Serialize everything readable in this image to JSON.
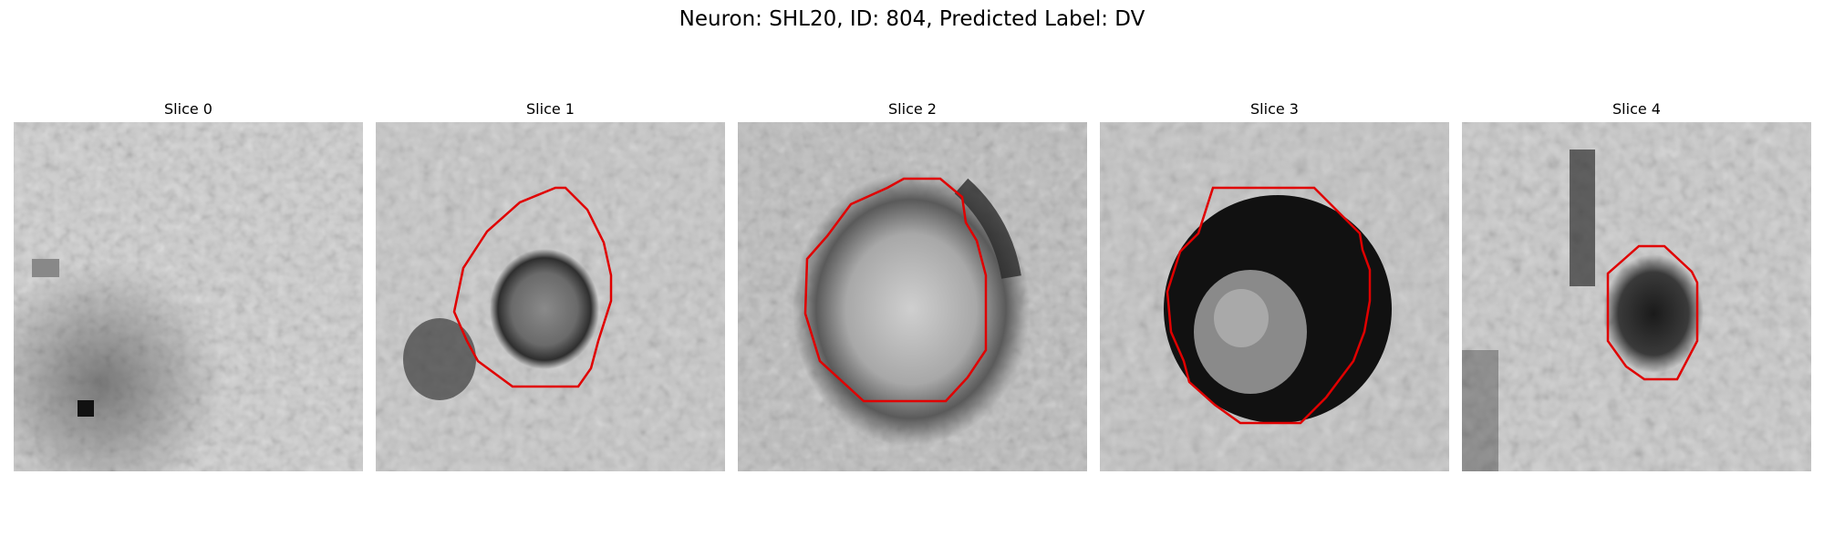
{
  "figure": {
    "title": "Neuron: SHL20, ID: 804, Predicted Label: DV",
    "contour_color": "#e00000"
  },
  "panels": [
    {
      "label": "Slice 0",
      "has_contour": false
    },
    {
      "label": "Slice 1",
      "has_contour": true
    },
    {
      "label": "Slice 2",
      "has_contour": true
    },
    {
      "label": "Slice 3",
      "has_contour": true
    },
    {
      "label": "Slice 4",
      "has_contour": true
    }
  ]
}
